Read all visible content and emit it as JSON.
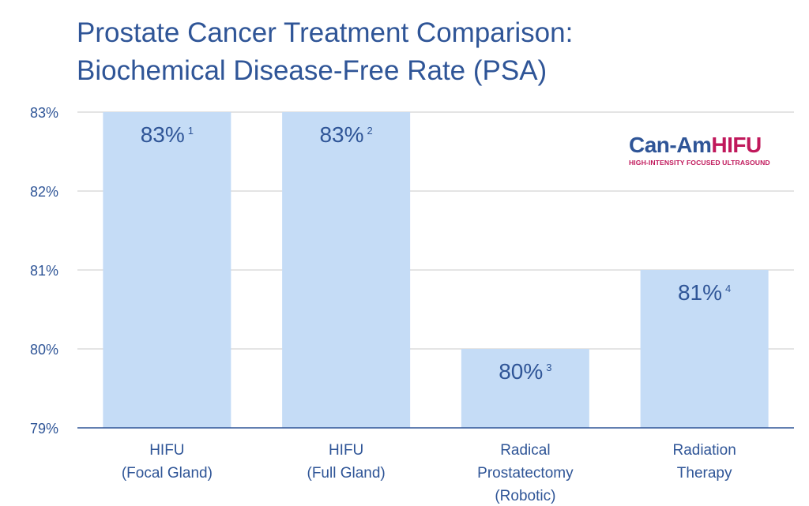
{
  "title": {
    "line1": "Prostate Cancer Treatment Comparison:",
    "line2": "Biochemical Disease-Free Rate (PSA)"
  },
  "logo": {
    "part1": "Can-Am",
    "part2": "HIFU",
    "tagline": "HIGH-INTENSITY FOCUSED ULTRASOUND"
  },
  "colors": {
    "bar": "#c5dcf6",
    "text": "#2f5597",
    "grid": "#c8c8c8",
    "axis": "#2f5597",
    "brand_magenta": "#c0185b"
  },
  "chart_data": {
    "type": "bar",
    "title": "Prostate Cancer Treatment Comparison: Biochemical Disease-Free Rate (PSA)",
    "xlabel": "",
    "ylabel": "",
    "ylim": [
      79,
      83
    ],
    "yticks": [
      79,
      80,
      81,
      82,
      83
    ],
    "ytick_labels": [
      "79%",
      "80%",
      "81%",
      "82%",
      "83%"
    ],
    "grid": true,
    "categories": [
      [
        "HIFU",
        "(Focal Gland)"
      ],
      [
        "HIFU",
        "(Full Gland)"
      ],
      [
        "Radical",
        "Prostatectomy",
        "(Robotic)"
      ],
      [
        "Radiation",
        "Therapy"
      ]
    ],
    "values": [
      83,
      83,
      80,
      81
    ],
    "data_labels": [
      "83%",
      "83%",
      "80%",
      "81%"
    ],
    "footnotes": [
      "1",
      "2",
      "3",
      "4"
    ]
  }
}
